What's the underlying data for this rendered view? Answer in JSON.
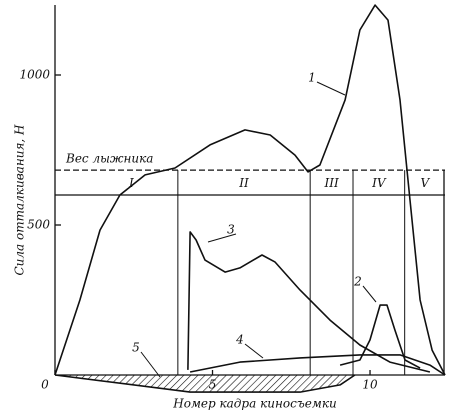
{
  "chart_data": {
    "type": "line",
    "y_label": "Сила отталкивания, Н",
    "x_label": "Номер кадра киносъемки",
    "xlim": [
      0,
      12.38
    ],
    "ylim": [
      -60,
      1250
    ],
    "xticks": [
      0,
      5,
      10
    ],
    "yticks": [
      500,
      1000
    ],
    "reference_line": {
      "label": "Вес лыжника",
      "value": 683
    },
    "phase_band_bottom": 600,
    "phase_boundaries": [
      3.9,
      8.1,
      9.46,
      11.1
    ],
    "phases": [
      "I",
      "II",
      "III",
      "IV",
      "V"
    ],
    "series": [
      {
        "name": "1",
        "color": "#111111",
        "x": [
          0,
          0.79,
          1.43,
          2.06,
          2.86,
          3.81,
          4.92,
          6.03,
          6.83,
          7.62,
          8.03,
          8.41,
          9.21,
          9.68,
          10.16,
          10.57,
          10.95,
          11.27,
          11.59,
          11.97,
          12.38
        ],
        "values": [
          0,
          250,
          483,
          600,
          667,
          690,
          767,
          817,
          800,
          733,
          677,
          700,
          917,
          1150,
          1233,
          1183,
          917,
          583,
          250,
          83,
          0
        ]
      },
      {
        "name": "2",
        "color": "#111111",
        "x": [
          9.05,
          9.68,
          10,
          10.32,
          10.54,
          10.79,
          11.11,
          11.59
        ],
        "values": [
          33,
          50,
          117,
          233,
          233,
          150,
          50,
          23
        ]
      },
      {
        "name": "3",
        "color": "#111111",
        "x": [
          4.22,
          4.29,
          4.48,
          4.76,
          5.4,
          5.87,
          6.57,
          6.98,
          7.78,
          8.73,
          9.68,
          10.63,
          11.9
        ],
        "values": [
          17,
          477,
          450,
          383,
          343,
          357,
          400,
          377,
          283,
          183,
          100,
          43,
          10
        ]
      },
      {
        "name": "4",
        "color": "#111111",
        "x": [
          4.29,
          5.87,
          7.78,
          9.68,
          10.95,
          11.9,
          12.38
        ],
        "values": [
          10,
          43,
          57,
          67,
          67,
          33,
          0
        ]
      },
      {
        "name": "5",
        "color": "#111111",
        "hatched": true,
        "x": [
          0,
          4.29,
          7.78,
          9.05,
          9.52
        ],
        "values": [
          0,
          -57,
          -57,
          -33,
          0
        ]
      }
    ]
  }
}
